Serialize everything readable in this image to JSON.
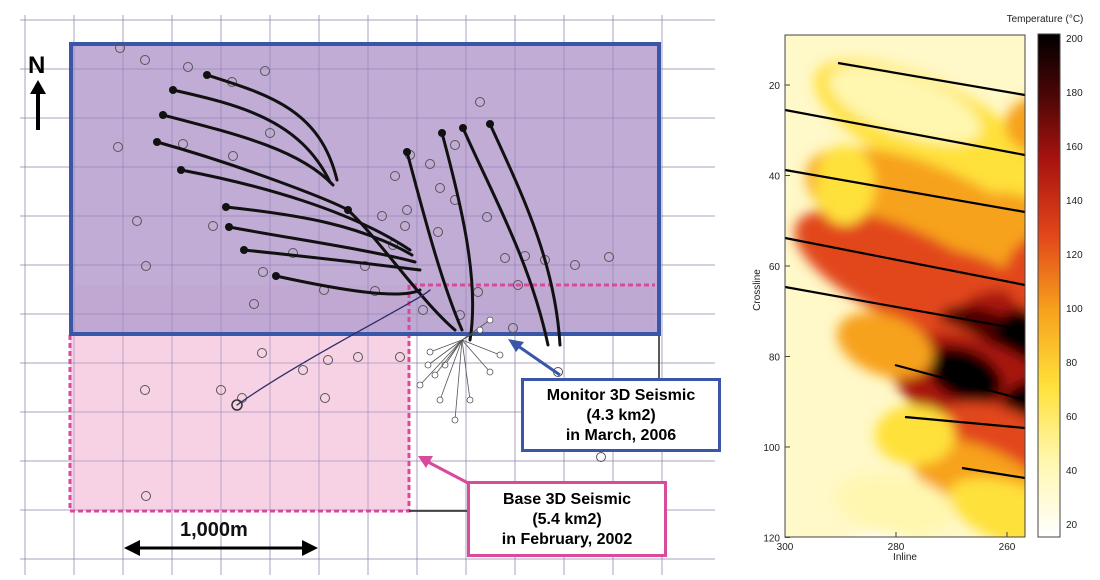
{
  "map": {
    "north_label": "N",
    "scale_label": "1,000m",
    "monitor_callout": {
      "line1": "Monitor 3D Seismic",
      "line2": "(4.3 km2)",
      "line3": "in March, 2006"
    },
    "base_callout": {
      "line1": "Base 3D Seismic",
      "line2": "(5.4 km2)",
      "line3": "in February, 2002"
    },
    "colors": {
      "monitor": "#3a56a8",
      "monitor_fill": "#b9a3cf",
      "base": "#d94a9c",
      "base_fill": "#f7d2e4"
    }
  },
  "heatmap": {
    "colorbar_title": "Temperature (°C)",
    "colorbar_ticks": [
      "200",
      "180",
      "160",
      "140",
      "120",
      "100",
      "80",
      "60",
      "40",
      "20"
    ],
    "y_label": "Crossline",
    "y_ticks": [
      "20",
      "40",
      "60",
      "80",
      "100",
      "120"
    ],
    "x_label": "Inline",
    "x_ticks": [
      "300",
      "280",
      "260"
    ],
    "colorscale": [
      "#ffffff",
      "#fff7b0",
      "#ffe13a",
      "#f7a21c",
      "#e2461a",
      "#a8130f",
      "#4a0606",
      "#000000"
    ]
  }
}
